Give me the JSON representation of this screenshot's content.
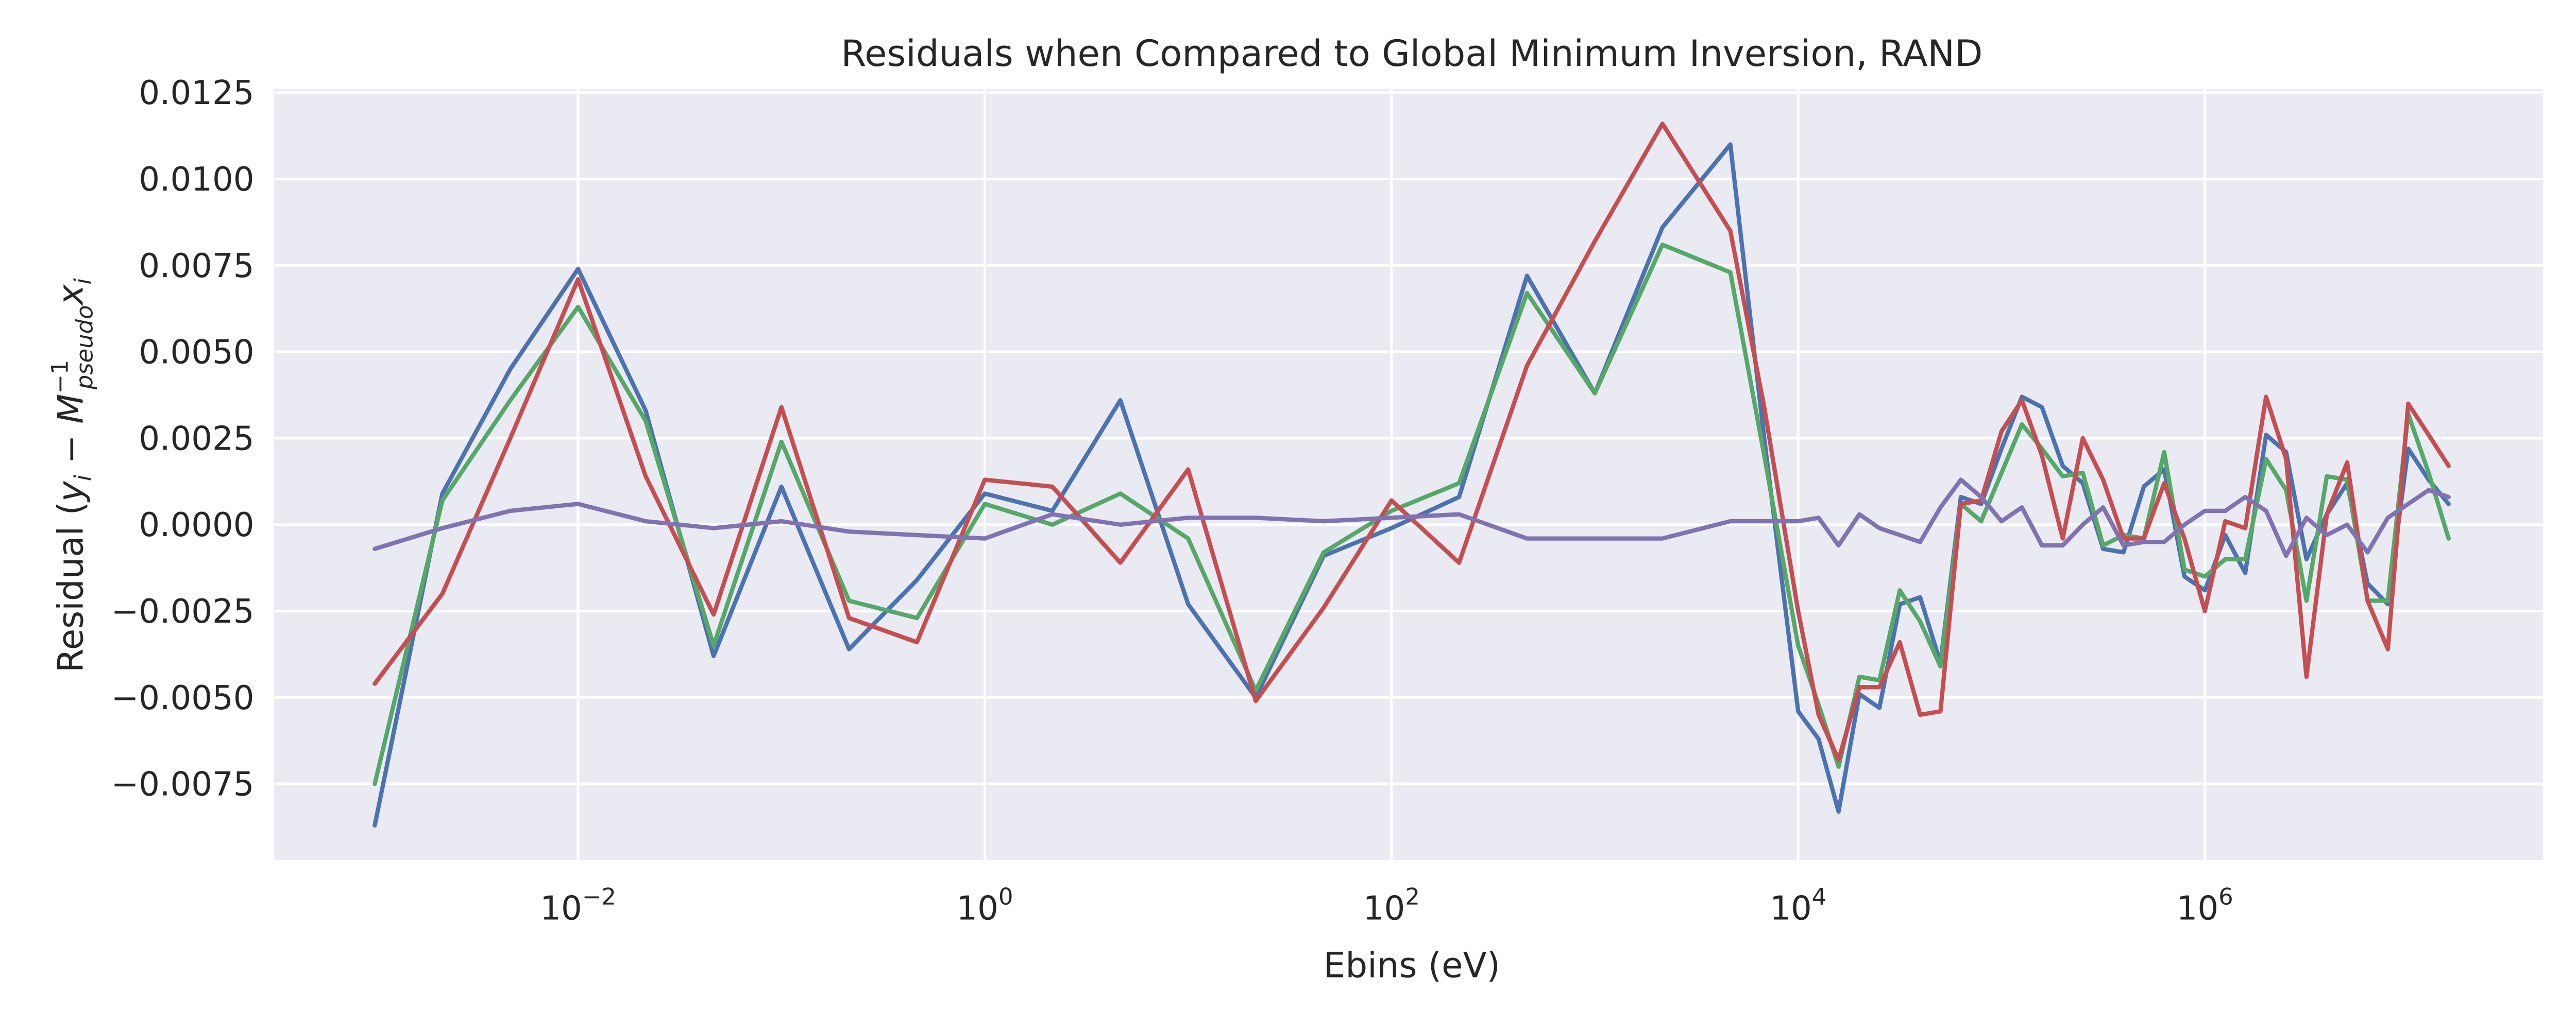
{
  "chart_data": {
    "type": "line",
    "title": "Residuals when Compared to Global Minimum Inversion, RAND",
    "xlabel": "Ebins (eV)",
    "ylabel": [
      "Residual (",
      "y",
      "i",
      " − ",
      "M",
      "−1",
      "pseudo",
      "x",
      "i"
    ],
    "xscale": "log",
    "grid": true,
    "x": [
      0.001,
      0.00215,
      0.00464,
      0.01,
      0.0215,
      0.0464,
      0.1,
      0.215,
      0.464,
      1,
      2.15,
      4.64,
      10,
      21.5,
      46.4,
      100,
      215,
      464,
      1000,
      2150,
      4640,
      6810,
      10000,
      12600,
      15800,
      20000,
      25100,
      31600,
      39800,
      50100,
      63100,
      79400,
      100000,
      126000,
      158000,
      200000,
      251000,
      316000,
      398000,
      501000,
      631000,
      794000,
      1000000,
      1260000,
      1580000,
      2000000,
      2510000,
      3160000,
      3980000,
      5010000,
      6310000,
      7940000,
      10000000,
      12600000,
      15800000
    ],
    "series": [
      {
        "color": "#4c72b0",
        "values": [
          -0.0087,
          0.0009,
          0.0045,
          0.0074,
          0.0033,
          -0.0038,
          0.0011,
          -0.0036,
          -0.0016,
          0.0009,
          0.0004,
          0.0036,
          -0.0023,
          -0.005,
          -0.0009,
          -0.0001,
          0.0008,
          0.0072,
          0.0038,
          0.0086,
          0.011,
          0.0025,
          -0.0054,
          -0.0062,
          -0.0083,
          -0.0049,
          -0.0053,
          -0.0023,
          -0.0021,
          -0.004,
          0.0008,
          0.0006,
          0.0022,
          0.0037,
          0.0034,
          0.0017,
          0.0012,
          -0.0007,
          -0.0008,
          0.0011,
          0.0016,
          -0.0015,
          -0.0019,
          -0.0003,
          -0.0014,
          0.0026,
          0.0021,
          -0.001,
          0.0003,
          0.0012,
          -0.0017,
          -0.0023,
          0.0022,
          0.0013,
          0.0006
        ]
      },
      {
        "color": "#55a868",
        "values": [
          -0.0075,
          0.0007,
          0.0036,
          0.0063,
          0.003,
          -0.0035,
          0.0024,
          -0.0022,
          -0.0027,
          0.0006,
          0.0,
          0.0009,
          -0.0004,
          -0.0048,
          -0.0008,
          0.0004,
          0.0012,
          0.0067,
          0.0038,
          0.0081,
          0.0073,
          0.002,
          -0.0035,
          -0.0052,
          -0.007,
          -0.0044,
          -0.0045,
          -0.0019,
          -0.0028,
          -0.0041,
          0.0006,
          0.0001,
          0.0015,
          0.0029,
          0.0022,
          0.0014,
          0.0015,
          -0.0006,
          -0.0003,
          -0.0004,
          0.0021,
          -0.0013,
          -0.0015,
          -0.001,
          -0.001,
          0.0019,
          0.001,
          -0.0022,
          0.0014,
          0.0013,
          -0.0022,
          -0.0022,
          0.0032,
          0.0015,
          -0.0004
        ]
      },
      {
        "color": "#c44e52",
        "values": [
          -0.0046,
          -0.002,
          0.0025,
          0.0071,
          0.0014,
          -0.0026,
          0.0034,
          -0.0027,
          -0.0034,
          0.0013,
          0.0011,
          -0.0011,
          0.0016,
          -0.0051,
          -0.0024,
          0.0007,
          -0.0011,
          0.0046,
          0.0082,
          0.0116,
          0.0085,
          0.0034,
          -0.0025,
          -0.0055,
          -0.0068,
          -0.0047,
          -0.0047,
          -0.0034,
          -0.0055,
          -0.0054,
          0.0006,
          0.0007,
          0.0027,
          0.0036,
          0.002,
          -0.0004,
          0.0025,
          0.0013,
          -0.0004,
          -0.0004,
          0.0012,
          -0.0004,
          -0.0025,
          0.0001,
          -0.0001,
          0.0037,
          0.0019,
          -0.0044,
          0.0003,
          0.0018,
          -0.0022,
          -0.0036,
          0.0035,
          0.0026,
          0.0017
        ]
      },
      {
        "color": "#8172b2",
        "values": [
          -0.0007,
          -0.0001,
          0.0004,
          0.0006,
          0.0001,
          -0.0001,
          0.0001,
          -0.0002,
          -0.0003,
          -0.0004,
          0.0003,
          0.0,
          0.0002,
          0.0002,
          0.0001,
          0.0002,
          0.0003,
          -0.0004,
          -0.0004,
          -0.0004,
          0.0001,
          0.0001,
          0.0001,
          0.0002,
          -0.0006,
          0.0003,
          -0.0001,
          -0.0003,
          -0.0005,
          0.0005,
          0.0013,
          0.0008,
          0.0001,
          0.0005,
          -0.0006,
          -0.0006,
          0.0,
          0.0005,
          -0.0006,
          -0.0005,
          -0.0005,
          0.0,
          0.0004,
          0.0004,
          0.0008,
          0.0004,
          -0.0009,
          0.0002,
          -0.0003,
          0.0,
          -0.0008,
          0.0002,
          0.0006,
          0.001,
          0.0008
        ]
      }
    ],
    "xlim": [
      0.00032,
      46000000
    ],
    "xticks": [
      {
        "value": 0.01,
        "label": [
          "10",
          "−2"
        ]
      },
      {
        "value": 1,
        "label": [
          "10",
          "0"
        ]
      },
      {
        "value": 100,
        "label": [
          "10",
          "2"
        ]
      },
      {
        "value": 10000,
        "label": [
          "10",
          "4"
        ]
      },
      {
        "value": 1000000,
        "label": [
          "10",
          "6"
        ]
      }
    ],
    "ylim": [
      -0.0097,
      0.0126
    ],
    "yticks": [
      {
        "value": -0.0075,
        "label": "−0.0075"
      },
      {
        "value": -0.005,
        "label": "−0.0050"
      },
      {
        "value": -0.0025,
        "label": "−0.0025"
      },
      {
        "value": 0,
        "label": "0.0000"
      },
      0.0025,
      {
        "value": 0.005,
        "label": "0.0050"
      },
      0.0075,
      {
        "value": 0.01,
        "label": "0.0100"
      },
      0.0125
    ]
  }
}
